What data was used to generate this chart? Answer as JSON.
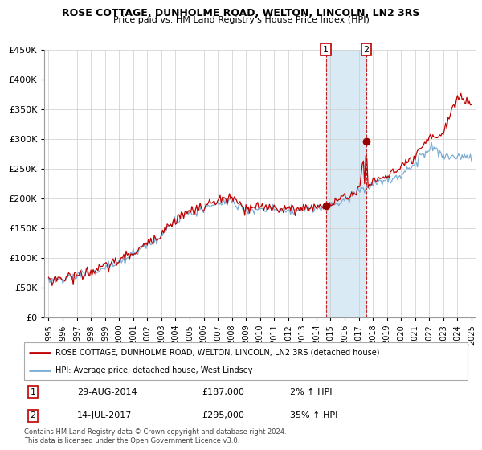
{
  "title": "ROSE COTTAGE, DUNHOLME ROAD, WELTON, LINCOLN, LN2 3RS",
  "subtitle": "Price paid vs. HM Land Registry's House Price Index (HPI)",
  "legend_line1": "ROSE COTTAGE, DUNHOLME ROAD, WELTON, LINCOLN, LN2 3RS (detached house)",
  "legend_line2": "HPI: Average price, detached house, West Lindsey",
  "transaction1_date": "29-AUG-2014",
  "transaction1_price": "£187,000",
  "transaction1_hpi": "2% ↑ HPI",
  "transaction2_date": "14-JUL-2017",
  "transaction2_price": "£295,000",
  "transaction2_hpi": "35% ↑ HPI",
  "footer": "Contains HM Land Registry data © Crown copyright and database right 2024.\nThis data is licensed under the Open Government Licence v3.0.",
  "hpi_color": "#7aadd4",
  "price_color": "#c00000",
  "dot_color": "#990000",
  "shading_color": "#daeaf5",
  "ylim_min": 0,
  "ylim_max": 450000,
  "yticks": [
    0,
    50000,
    100000,
    150000,
    200000,
    250000,
    300000,
    350000,
    400000,
    450000
  ],
  "background_color": "#ffffff",
  "transaction1_x": 2014.667,
  "transaction2_x": 2017.542
}
